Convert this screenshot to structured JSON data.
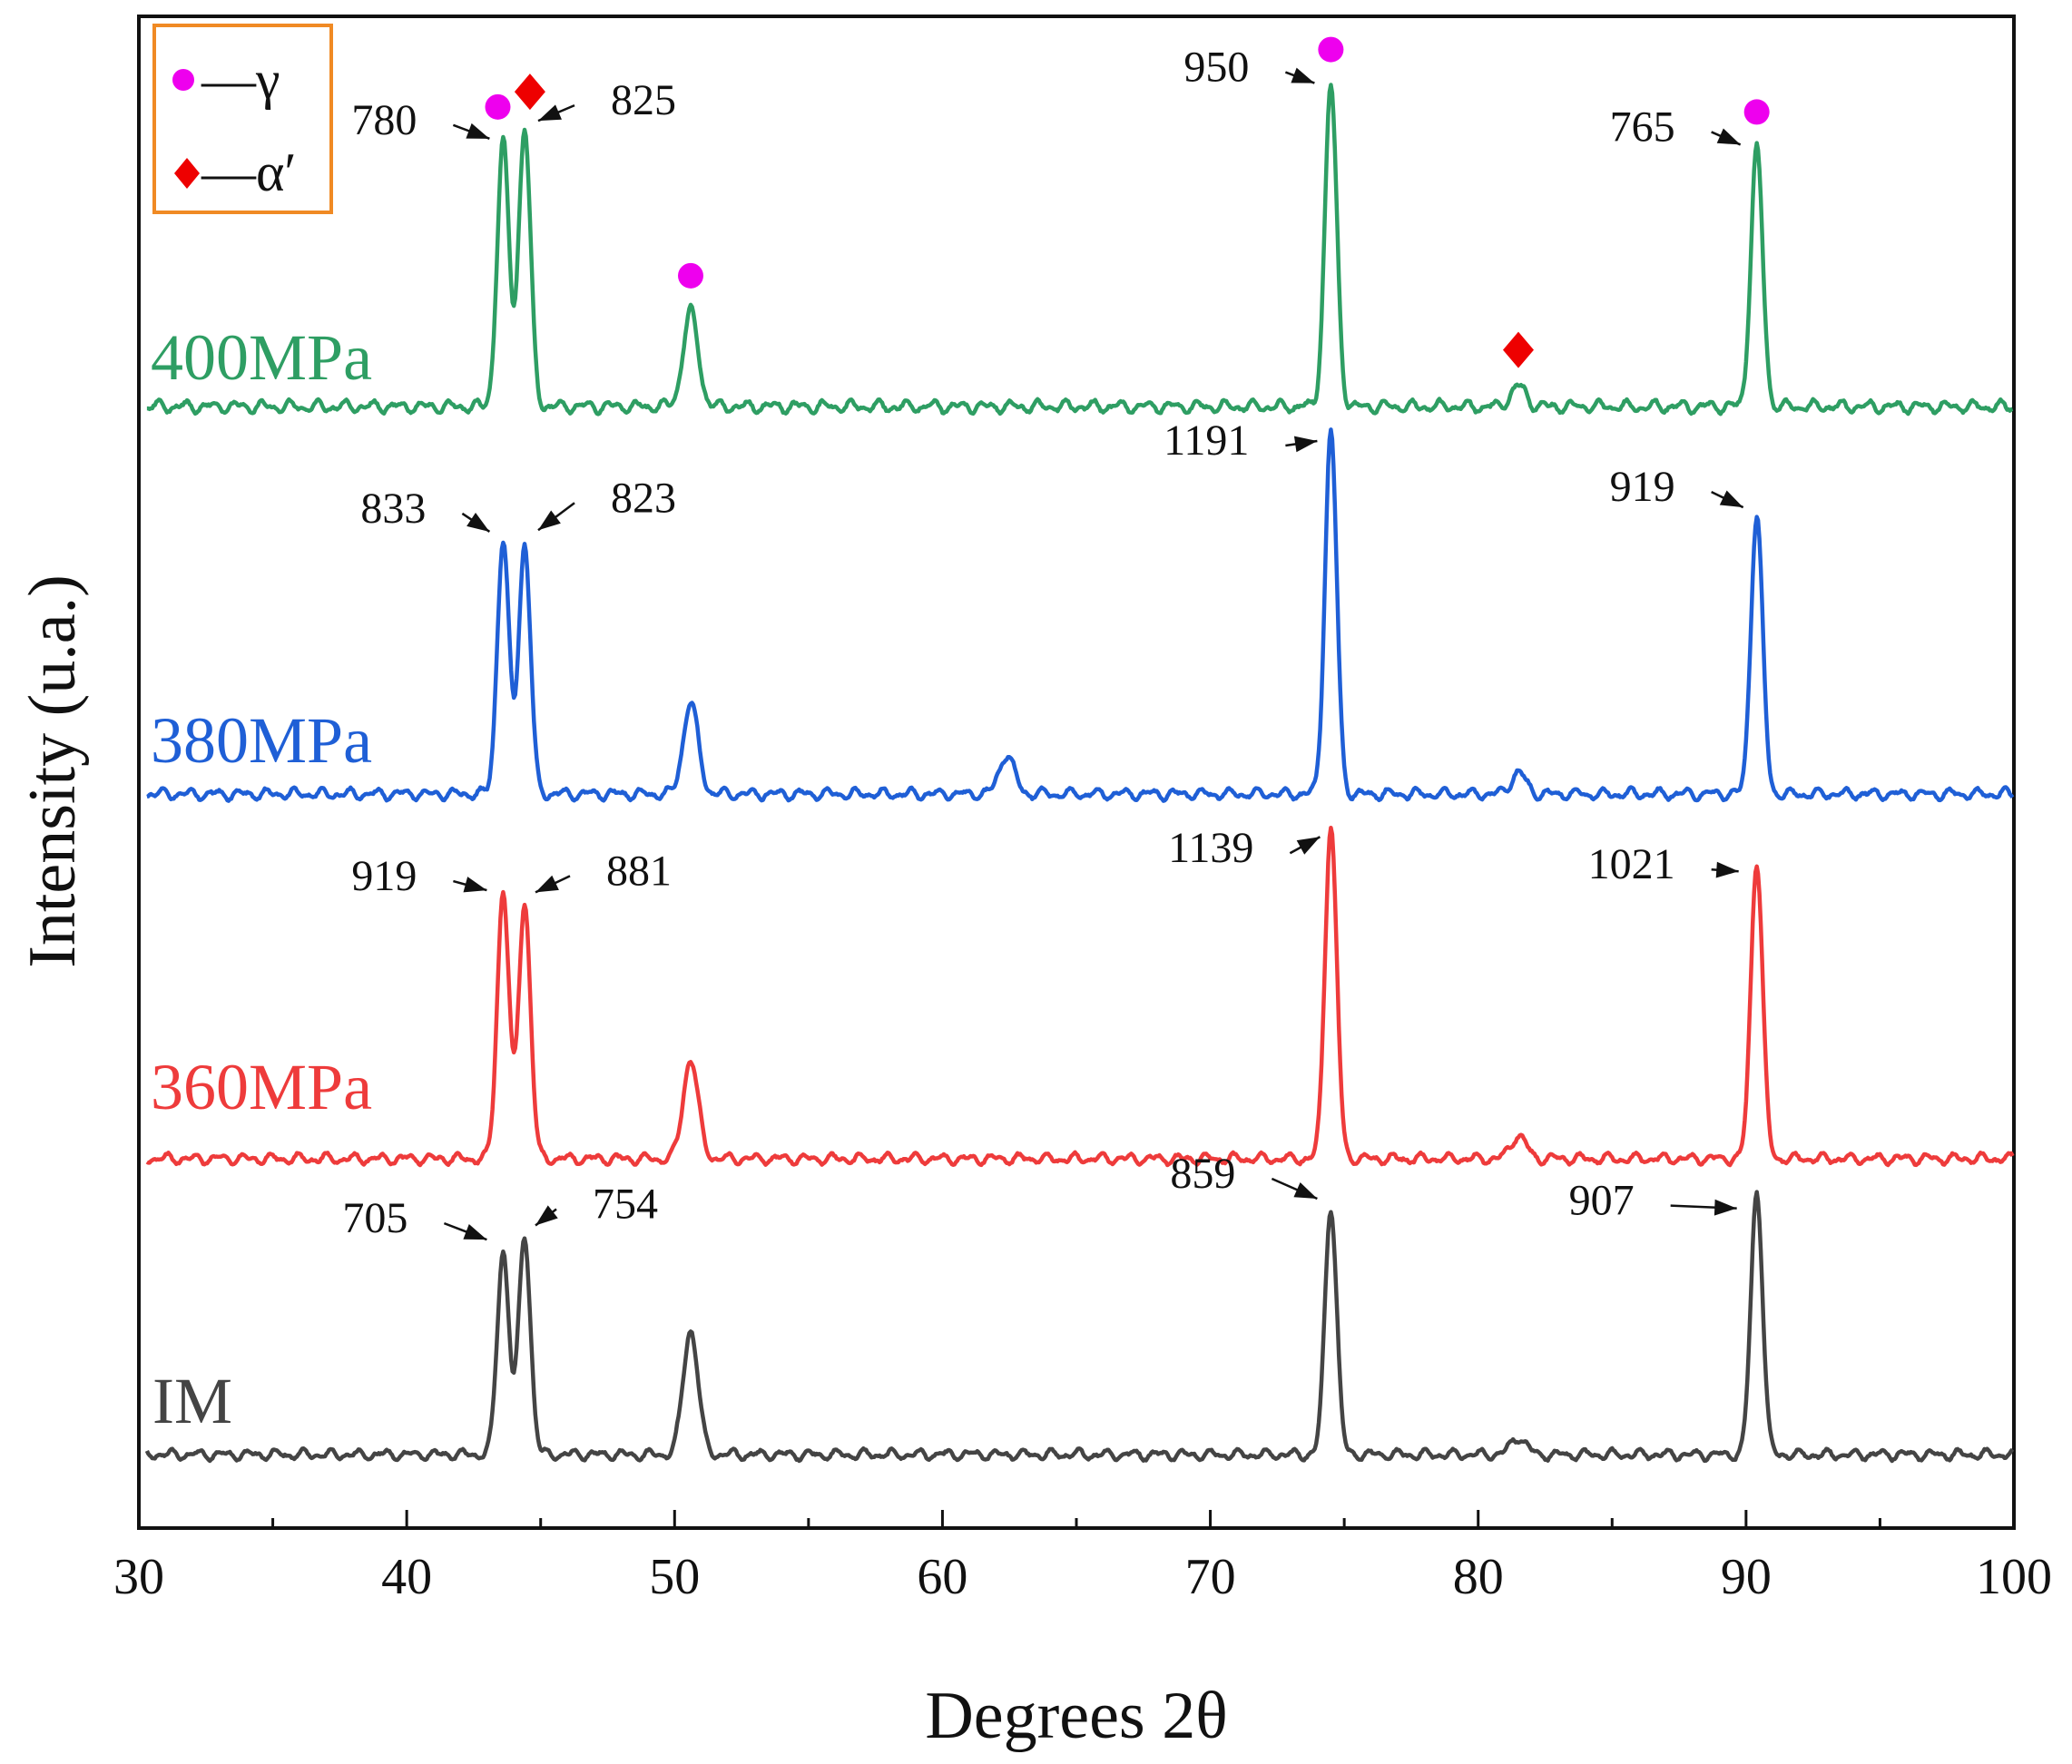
{
  "chart_data": {
    "type": "line",
    "title": "",
    "xlabel": "Degrees 2θ",
    "ylabel": "Intensity (u.a.)",
    "xlim": [
      30,
      100
    ],
    "x_ticks": [
      30,
      40,
      50,
      60,
      70,
      80,
      90,
      100
    ],
    "y_ticks_shown": false,
    "grid": false,
    "legend": {
      "position": "top-left",
      "entries": [
        {
          "marker": "circle",
          "color": "#ee00ee",
          "label": "—γ"
        },
        {
          "marker": "diamond",
          "color": "#ee0000",
          "label": "—α′"
        }
      ]
    },
    "series": [
      {
        "name": "IM",
        "color": "#444444",
        "peaks": [
          {
            "x": 43.6,
            "intensity": 705,
            "label": "705"
          },
          {
            "x": 44.4,
            "intensity": 754,
            "label": "754"
          },
          {
            "x": 50.6,
            "intensity": 430,
            "label": ""
          },
          {
            "x": 74.5,
            "intensity": 859,
            "label": "859"
          },
          {
            "x": 81.5,
            "intensity": 60,
            "label": ""
          },
          {
            "x": 90.4,
            "intensity": 907,
            "label": "907"
          }
        ]
      },
      {
        "name": "360MPa",
        "color": "#ee3b3b",
        "peaks": [
          {
            "x": 43.6,
            "intensity": 919,
            "label": "919"
          },
          {
            "x": 44.4,
            "intensity": 881,
            "label": "881"
          },
          {
            "x": 50.6,
            "intensity": 340,
            "label": ""
          },
          {
            "x": 74.5,
            "intensity": 1139,
            "label": "1139"
          },
          {
            "x": 81.5,
            "intensity": 80,
            "label": ""
          },
          {
            "x": 90.4,
            "intensity": 1021,
            "label": "1021"
          }
        ]
      },
      {
        "name": "380MPa",
        "color": "#1f5fd6",
        "peaks": [
          {
            "x": 43.6,
            "intensity": 833,
            "label": "833"
          },
          {
            "x": 44.4,
            "intensity": 823,
            "label": "823"
          },
          {
            "x": 50.6,
            "intensity": 300,
            "label": ""
          },
          {
            "x": 62.4,
            "intensity": 130,
            "label": ""
          },
          {
            "x": 74.5,
            "intensity": 1191,
            "label": "1191"
          },
          {
            "x": 81.5,
            "intensity": 70,
            "label": ""
          },
          {
            "x": 90.4,
            "intensity": 919,
            "label": "919"
          }
        ]
      },
      {
        "name": "400MPa",
        "color": "#2e9e63",
        "peaks": [
          {
            "x": 43.6,
            "intensity": 780,
            "label": "780"
          },
          {
            "x": 44.4,
            "intensity": 825,
            "label": "825"
          },
          {
            "x": 50.6,
            "intensity": 280,
            "label": ""
          },
          {
            "x": 74.5,
            "intensity": 950,
            "label": "950"
          },
          {
            "x": 81.5,
            "intensity": 60,
            "label": ""
          },
          {
            "x": 90.4,
            "intensity": 765,
            "label": "765"
          }
        ],
        "phase_markers": [
          {
            "phase": "gamma",
            "x": 43.4
          },
          {
            "phase": "alpha-prime",
            "x": 44.6
          },
          {
            "phase": "gamma",
            "x": 50.6
          },
          {
            "phase": "gamma",
            "x": 74.5
          },
          {
            "phase": "alpha-prime",
            "x": 81.5
          },
          {
            "phase": "gamma",
            "x": 90.4
          }
        ]
      }
    ]
  }
}
